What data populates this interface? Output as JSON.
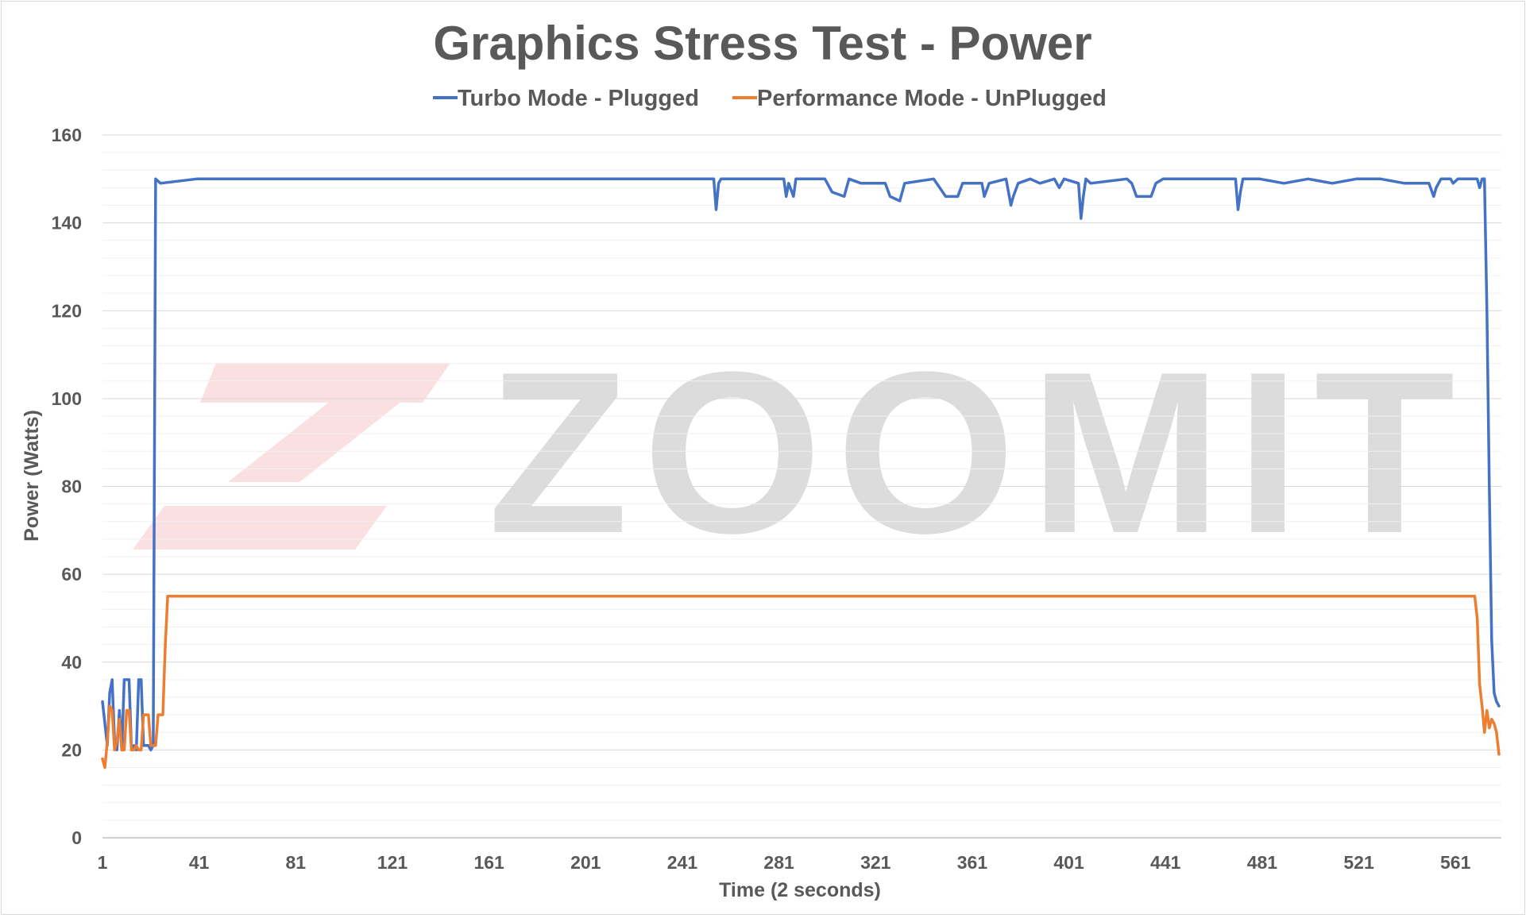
{
  "chart_data": {
    "type": "line",
    "title": "Graphics Stress Test - Power",
    "xlabel": "Time (2 seconds)",
    "ylabel": "Power (Watts)",
    "xlim": [
      1,
      580
    ],
    "ylim": [
      0,
      160
    ],
    "x_ticks": [
      "1",
      "41",
      "81",
      "121",
      "161",
      "201",
      "241",
      "281",
      "321",
      "361",
      "401",
      "441",
      "481",
      "521",
      "561"
    ],
    "y_ticks": [
      "0",
      "20",
      "40",
      "60",
      "80",
      "100",
      "120",
      "140",
      "160"
    ],
    "grid": "horizontal",
    "legend_position": "top",
    "series": [
      {
        "name": "Turbo Mode - Plugged",
        "color": "#4472c4",
        "points": [
          [
            1,
            31
          ],
          [
            3,
            21
          ],
          [
            4,
            33
          ],
          [
            5,
            36
          ],
          [
            6,
            22
          ],
          [
            7,
            20
          ],
          [
            8,
            29
          ],
          [
            9,
            20
          ],
          [
            10,
            36
          ],
          [
            11,
            36
          ],
          [
            12,
            36
          ],
          [
            13,
            20
          ],
          [
            14,
            21
          ],
          [
            15,
            20
          ],
          [
            16,
            36
          ],
          [
            17,
            36
          ],
          [
            18,
            21
          ],
          [
            20,
            21
          ],
          [
            21,
            20
          ],
          [
            22,
            21
          ],
          [
            23,
            150
          ],
          [
            25,
            149
          ],
          [
            40,
            150
          ],
          [
            60,
            150
          ],
          [
            80,
            150
          ],
          [
            100,
            150
          ],
          [
            120,
            150
          ],
          [
            140,
            150
          ],
          [
            160,
            150
          ],
          [
            180,
            150
          ],
          [
            200,
            150
          ],
          [
            220,
            150
          ],
          [
            240,
            150
          ],
          [
            254,
            150
          ],
          [
            255,
            143
          ],
          [
            256,
            149
          ],
          [
            257,
            150
          ],
          [
            270,
            150
          ],
          [
            283,
            150
          ],
          [
            284,
            146
          ],
          [
            285,
            149
          ],
          [
            287,
            146
          ],
          [
            288,
            150
          ],
          [
            300,
            150
          ],
          [
            303,
            147
          ],
          [
            308,
            146
          ],
          [
            310,
            150
          ],
          [
            315,
            149
          ],
          [
            325,
            149
          ],
          [
            327,
            146
          ],
          [
            331,
            145
          ],
          [
            333,
            149
          ],
          [
            345,
            150
          ],
          [
            350,
            146
          ],
          [
            355,
            146
          ],
          [
            357,
            149
          ],
          [
            365,
            149
          ],
          [
            366,
            146
          ],
          [
            368,
            149
          ],
          [
            375,
            150
          ],
          [
            377,
            144
          ],
          [
            378,
            146
          ],
          [
            380,
            149
          ],
          [
            385,
            150
          ],
          [
            389,
            149
          ],
          [
            395,
            150
          ],
          [
            397,
            148
          ],
          [
            399,
            150
          ],
          [
            405,
            149
          ],
          [
            406,
            141
          ],
          [
            407,
            146
          ],
          [
            408,
            150
          ],
          [
            410,
            149
          ],
          [
            425,
            150
          ],
          [
            427,
            149
          ],
          [
            429,
            146
          ],
          [
            435,
            146
          ],
          [
            437,
            149
          ],
          [
            440,
            150
          ],
          [
            449,
            150
          ],
          [
            470,
            150
          ],
          [
            471,
            143
          ],
          [
            472,
            147
          ],
          [
            473,
            150
          ],
          [
            480,
            150
          ],
          [
            490,
            149
          ],
          [
            500,
            150
          ],
          [
            510,
            149
          ],
          [
            520,
            150
          ],
          [
            530,
            150
          ],
          [
            540,
            149
          ],
          [
            550,
            149
          ],
          [
            552,
            146
          ],
          [
            553,
            148
          ],
          [
            555,
            150
          ],
          [
            559,
            150
          ],
          [
            560,
            149
          ],
          [
            562,
            150
          ],
          [
            570,
            150
          ],
          [
            571,
            148
          ],
          [
            572,
            150
          ],
          [
            573,
            150
          ],
          [
            574,
            120
          ],
          [
            575,
            80
          ],
          [
            576,
            45
          ],
          [
            577,
            33
          ],
          [
            578,
            31
          ],
          [
            579,
            30
          ]
        ]
      },
      {
        "name": "Performance Mode - UnPlugged",
        "color": "#ed7d31",
        "points": [
          [
            1,
            18
          ],
          [
            2,
            16
          ],
          [
            3,
            22
          ],
          [
            4,
            30
          ],
          [
            5,
            29
          ],
          [
            6,
            20
          ],
          [
            7,
            22
          ],
          [
            8,
            27
          ],
          [
            9,
            20
          ],
          [
            10,
            20
          ],
          [
            11,
            29
          ],
          [
            12,
            29
          ],
          [
            13,
            20
          ],
          [
            14,
            20
          ],
          [
            15,
            21
          ],
          [
            16,
            20
          ],
          [
            17,
            20
          ],
          [
            18,
            28
          ],
          [
            19,
            28
          ],
          [
            20,
            28
          ],
          [
            21,
            21
          ],
          [
            22,
            21
          ],
          [
            23,
            21
          ],
          [
            24,
            28
          ],
          [
            25,
            28
          ],
          [
            26,
            28
          ],
          [
            27,
            44
          ],
          [
            28,
            55
          ],
          [
            40,
            55
          ],
          [
            80,
            55
          ],
          [
            120,
            55
          ],
          [
            160,
            55
          ],
          [
            200,
            55
          ],
          [
            240,
            55
          ],
          [
            280,
            55
          ],
          [
            320,
            55
          ],
          [
            360,
            55
          ],
          [
            400,
            55
          ],
          [
            440,
            55
          ],
          [
            480,
            55
          ],
          [
            520,
            55
          ],
          [
            560,
            55
          ],
          [
            569,
            55
          ],
          [
            570,
            50
          ],
          [
            571,
            35
          ],
          [
            572,
            30
          ],
          [
            573,
            24
          ],
          [
            574,
            29
          ],
          [
            575,
            25
          ],
          [
            576,
            27
          ],
          [
            577,
            26
          ],
          [
            578,
            24
          ],
          [
            579,
            19
          ]
        ]
      }
    ]
  },
  "watermark": {
    "text": "ZOOMIT",
    "logo_color": "#fbe0e2",
    "text_color": "#dcdcdc"
  }
}
